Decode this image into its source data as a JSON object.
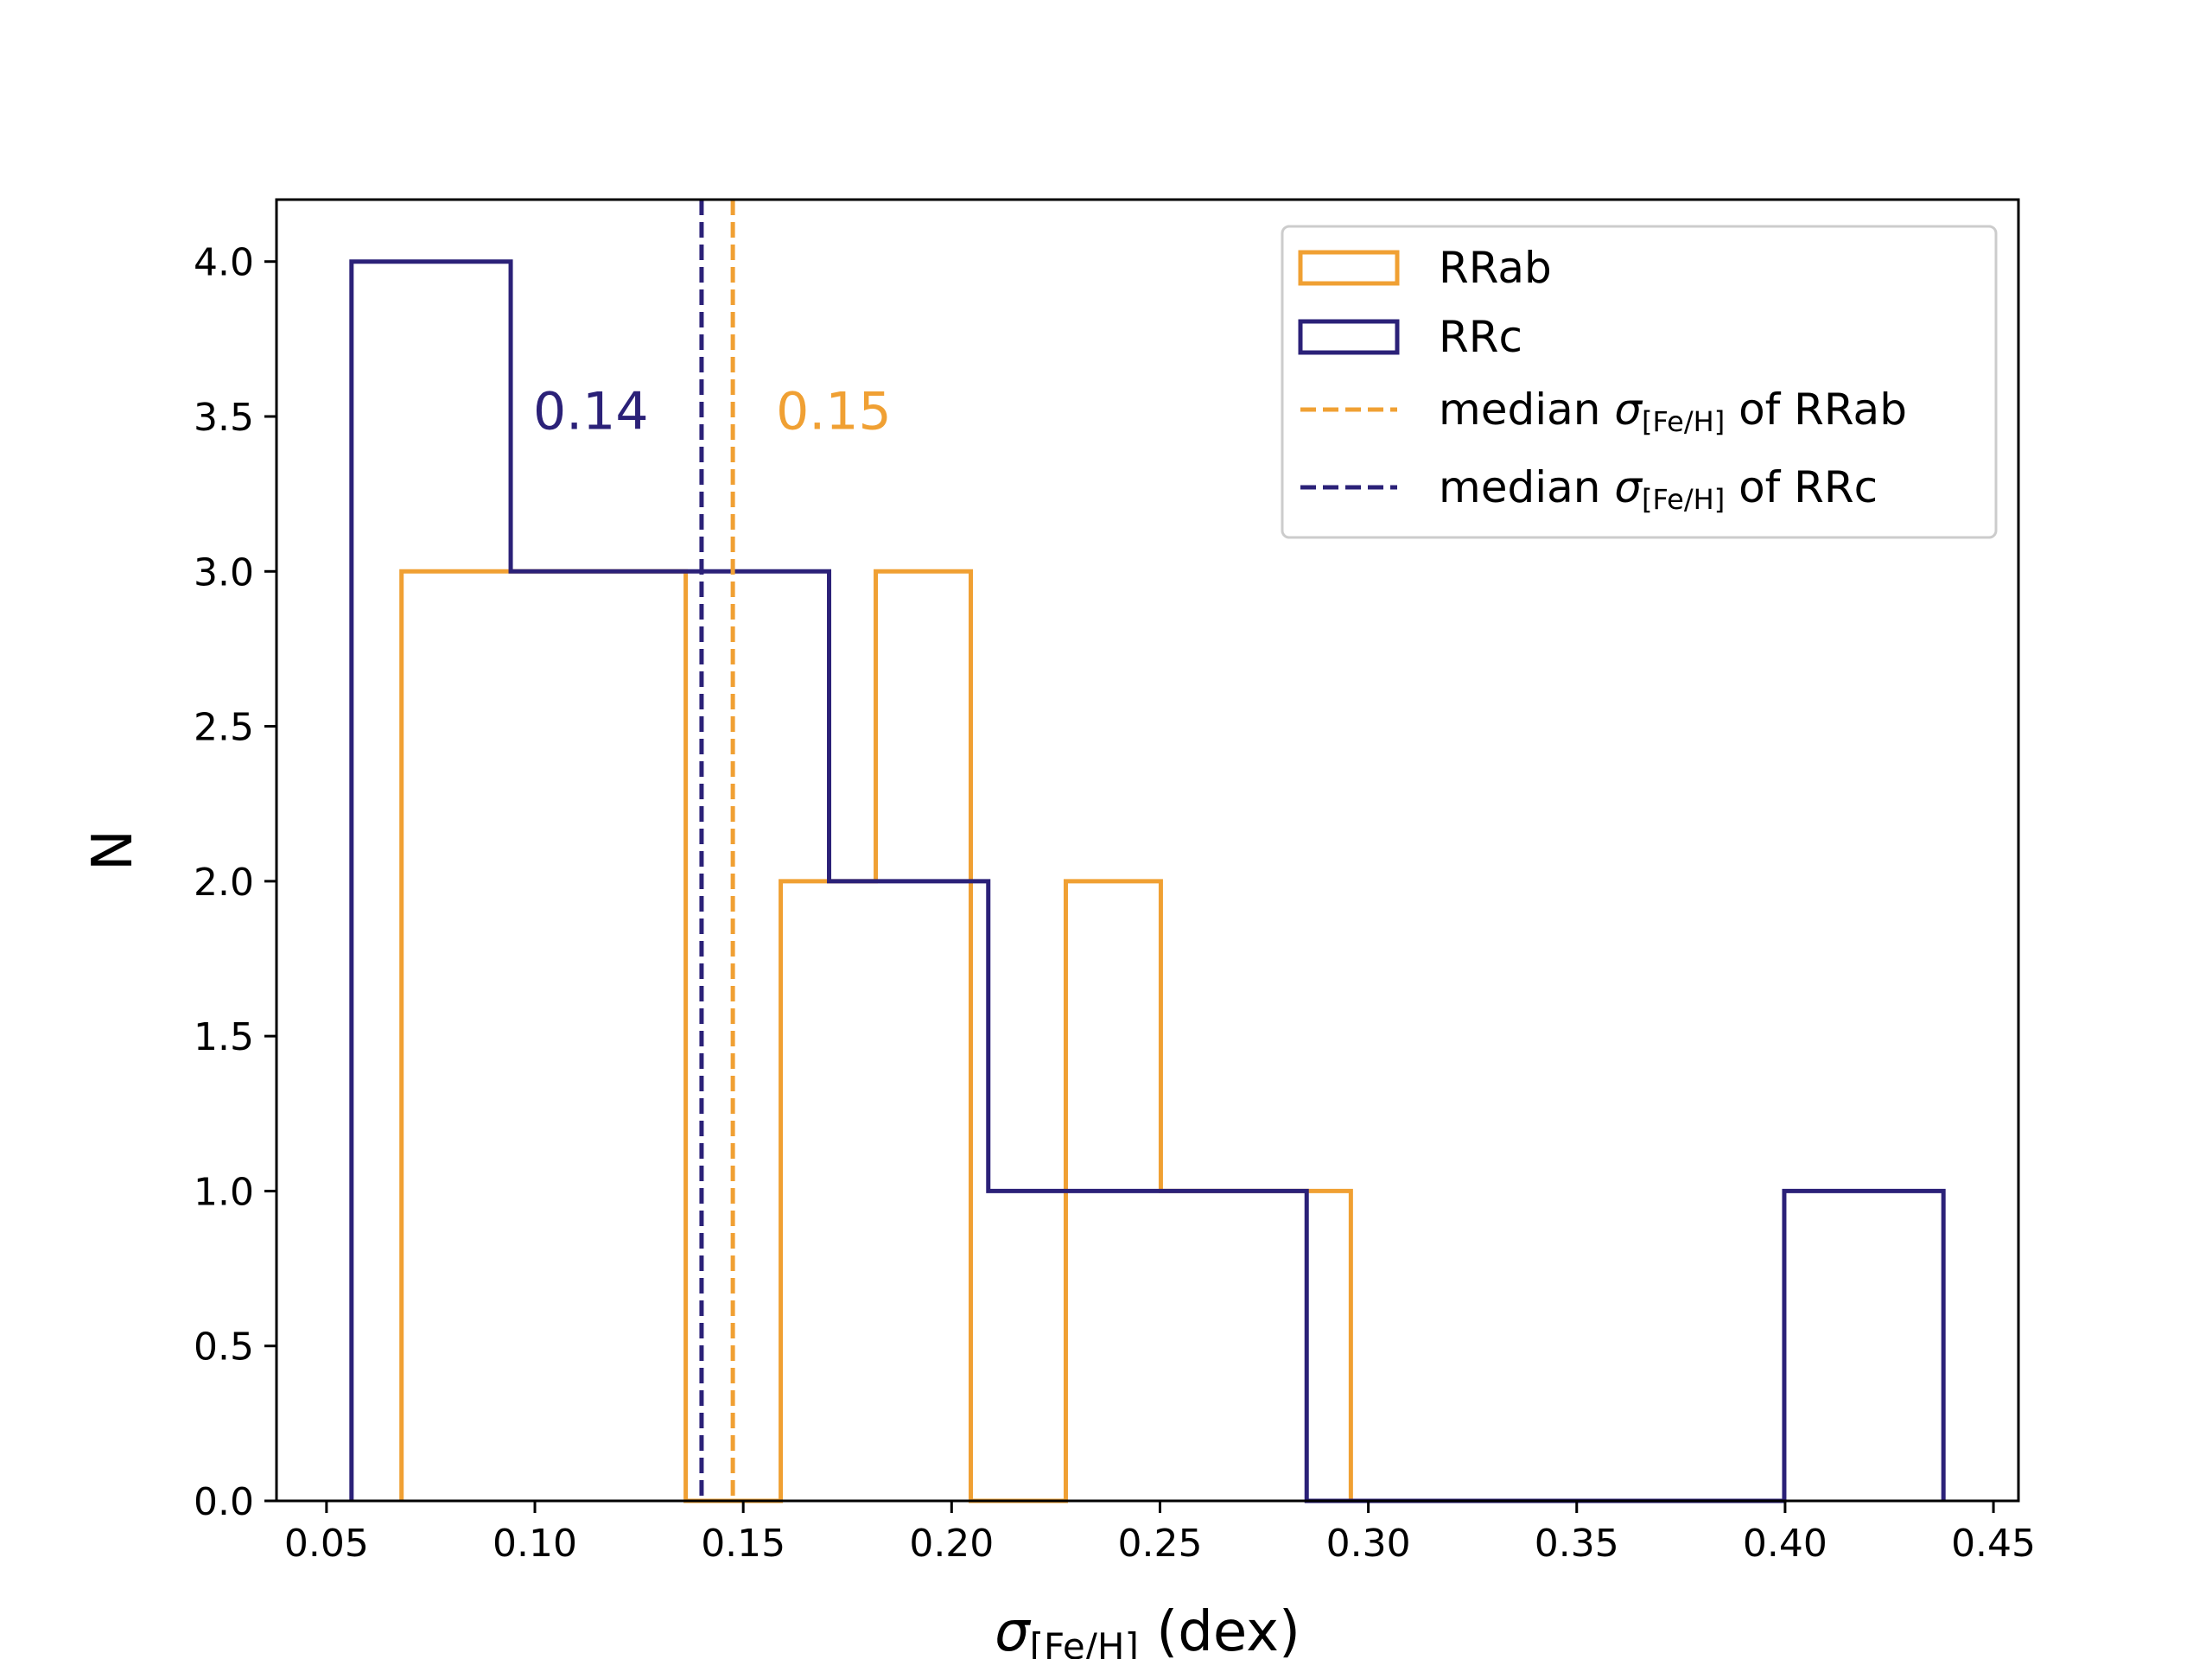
{
  "chart_data": {
    "type": "histogram",
    "xlabel": {
      "sym": "σ",
      "sub": "[Fe/H]",
      "rest": " (dex)"
    },
    "ylabel": "N",
    "xlim": [
      0.038,
      0.456
    ],
    "ylim": [
      0,
      4.2
    ],
    "xticks": [
      0.05,
      0.1,
      0.15,
      0.2,
      0.25,
      0.3,
      0.35,
      0.4,
      0.45
    ],
    "xtick_labels": [
      "0.05",
      "0.10",
      "0.15",
      "0.20",
      "0.25",
      "0.30",
      "0.35",
      "0.40",
      "0.45"
    ],
    "yticks": [
      0.0,
      0.5,
      1.0,
      1.5,
      2.0,
      2.5,
      3.0,
      3.5,
      4.0
    ],
    "ytick_labels": [
      "0.0",
      "0.5",
      "1.0",
      "1.5",
      "2.0",
      "2.5",
      "3.0",
      "3.5",
      "4.0"
    ],
    "grid": false,
    "legend_position": "top-right",
    "series": [
      {
        "name": "RRab",
        "color": "#f0a033",
        "bin_edges": [
          0.068,
          0.1134,
          0.1362,
          0.159,
          0.1818,
          0.2046,
          0.2274,
          0.2502,
          0.273,
          0.2958
        ],
        "counts": [
          3,
          3,
          0,
          2,
          3,
          0,
          2,
          1,
          1
        ]
      },
      {
        "name": "RRc",
        "color": "#2b2178",
        "bin_edges": [
          0.056,
          0.0942,
          0.1324,
          0.1706,
          0.2088,
          0.247,
          0.2852,
          0.3234,
          0.3616,
          0.3998,
          0.438
        ],
        "counts": [
          4,
          3,
          3,
          2,
          1,
          1,
          0,
          0,
          0,
          1
        ]
      }
    ],
    "medians": [
      {
        "series": "RRab",
        "value": 0.1475,
        "label": "0.15",
        "color": "#f0a033",
        "legend": {
          "pre": "median ",
          "sym": "σ",
          "sub": "[Fe/H]",
          "post": " of RRab"
        }
      },
      {
        "series": "RRc",
        "value": 0.14,
        "label": "0.14",
        "color": "#2b2178",
        "legend": {
          "pre": "median ",
          "sym": "σ",
          "sub": "[Fe/H]",
          "post": " of RRc"
        }
      }
    ]
  }
}
